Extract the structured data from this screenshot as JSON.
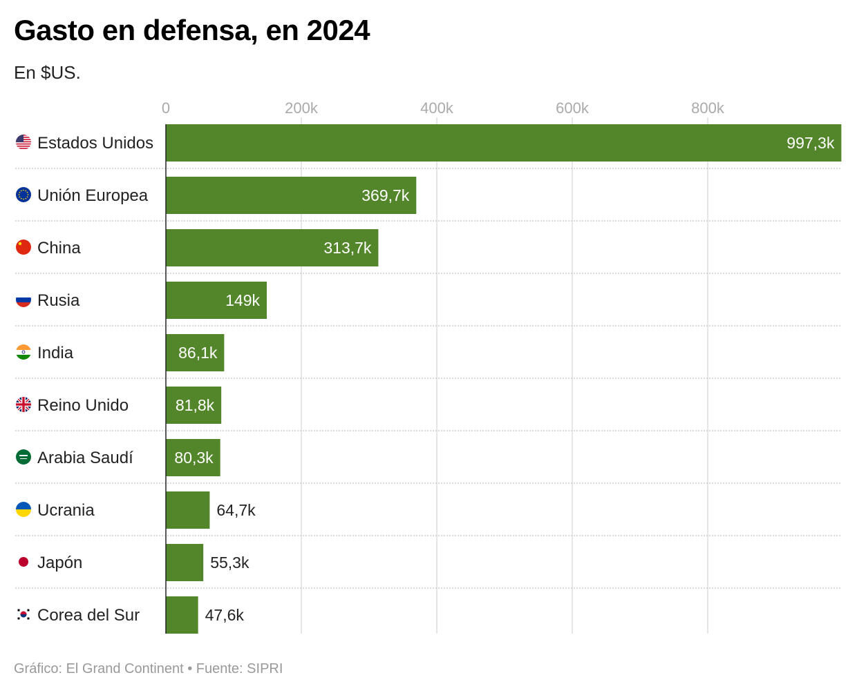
{
  "title": "Gasto en defensa, en 2024",
  "subtitle": "En $US.",
  "footer": "Gráfico: El Grand Continent • Fuente: SIPRI",
  "colors": {
    "bar": "#53862b",
    "label_inside": "#ffffff",
    "label_outside": "#222222",
    "grid": "#dddddd"
  },
  "chart_data": {
    "type": "bar",
    "orientation": "horizontal",
    "title": "Gasto en defensa, en 2024",
    "subtitle": "En $US.",
    "xlim": [
      0,
      1000
    ],
    "x_ticks": [
      {
        "value": 0,
        "label": "0"
      },
      {
        "value": 200,
        "label": "200k"
      },
      {
        "value": 400,
        "label": "400k"
      },
      {
        "value": 600,
        "label": "600k"
      },
      {
        "value": 800,
        "label": "800k"
      }
    ],
    "grid": true,
    "categories": [
      "Estados Unidos",
      "Unión Europea",
      "China",
      "Rusia",
      "India",
      "Reino Unido",
      "Arabia Saudí",
      "Ucrania",
      "Japón",
      "Corea del Sur"
    ],
    "flags": [
      "us-flag-icon",
      "eu-flag-icon",
      "china-flag-icon",
      "russia-flag-icon",
      "india-flag-icon",
      "uk-flag-icon",
      "saudi-flag-icon",
      "ukraine-flag-icon",
      "japan-flag-icon",
      "korea-flag-icon"
    ],
    "values": [
      997.3,
      369.7,
      313.7,
      149,
      86.1,
      81.8,
      80.3,
      64.7,
      55.3,
      47.6
    ],
    "value_labels": [
      "997,3k",
      "369,7k",
      "313,7k",
      "149k",
      "86,1k",
      "81,8k",
      "80,3k",
      "64,7k",
      "55,3k",
      "47,6k"
    ]
  }
}
